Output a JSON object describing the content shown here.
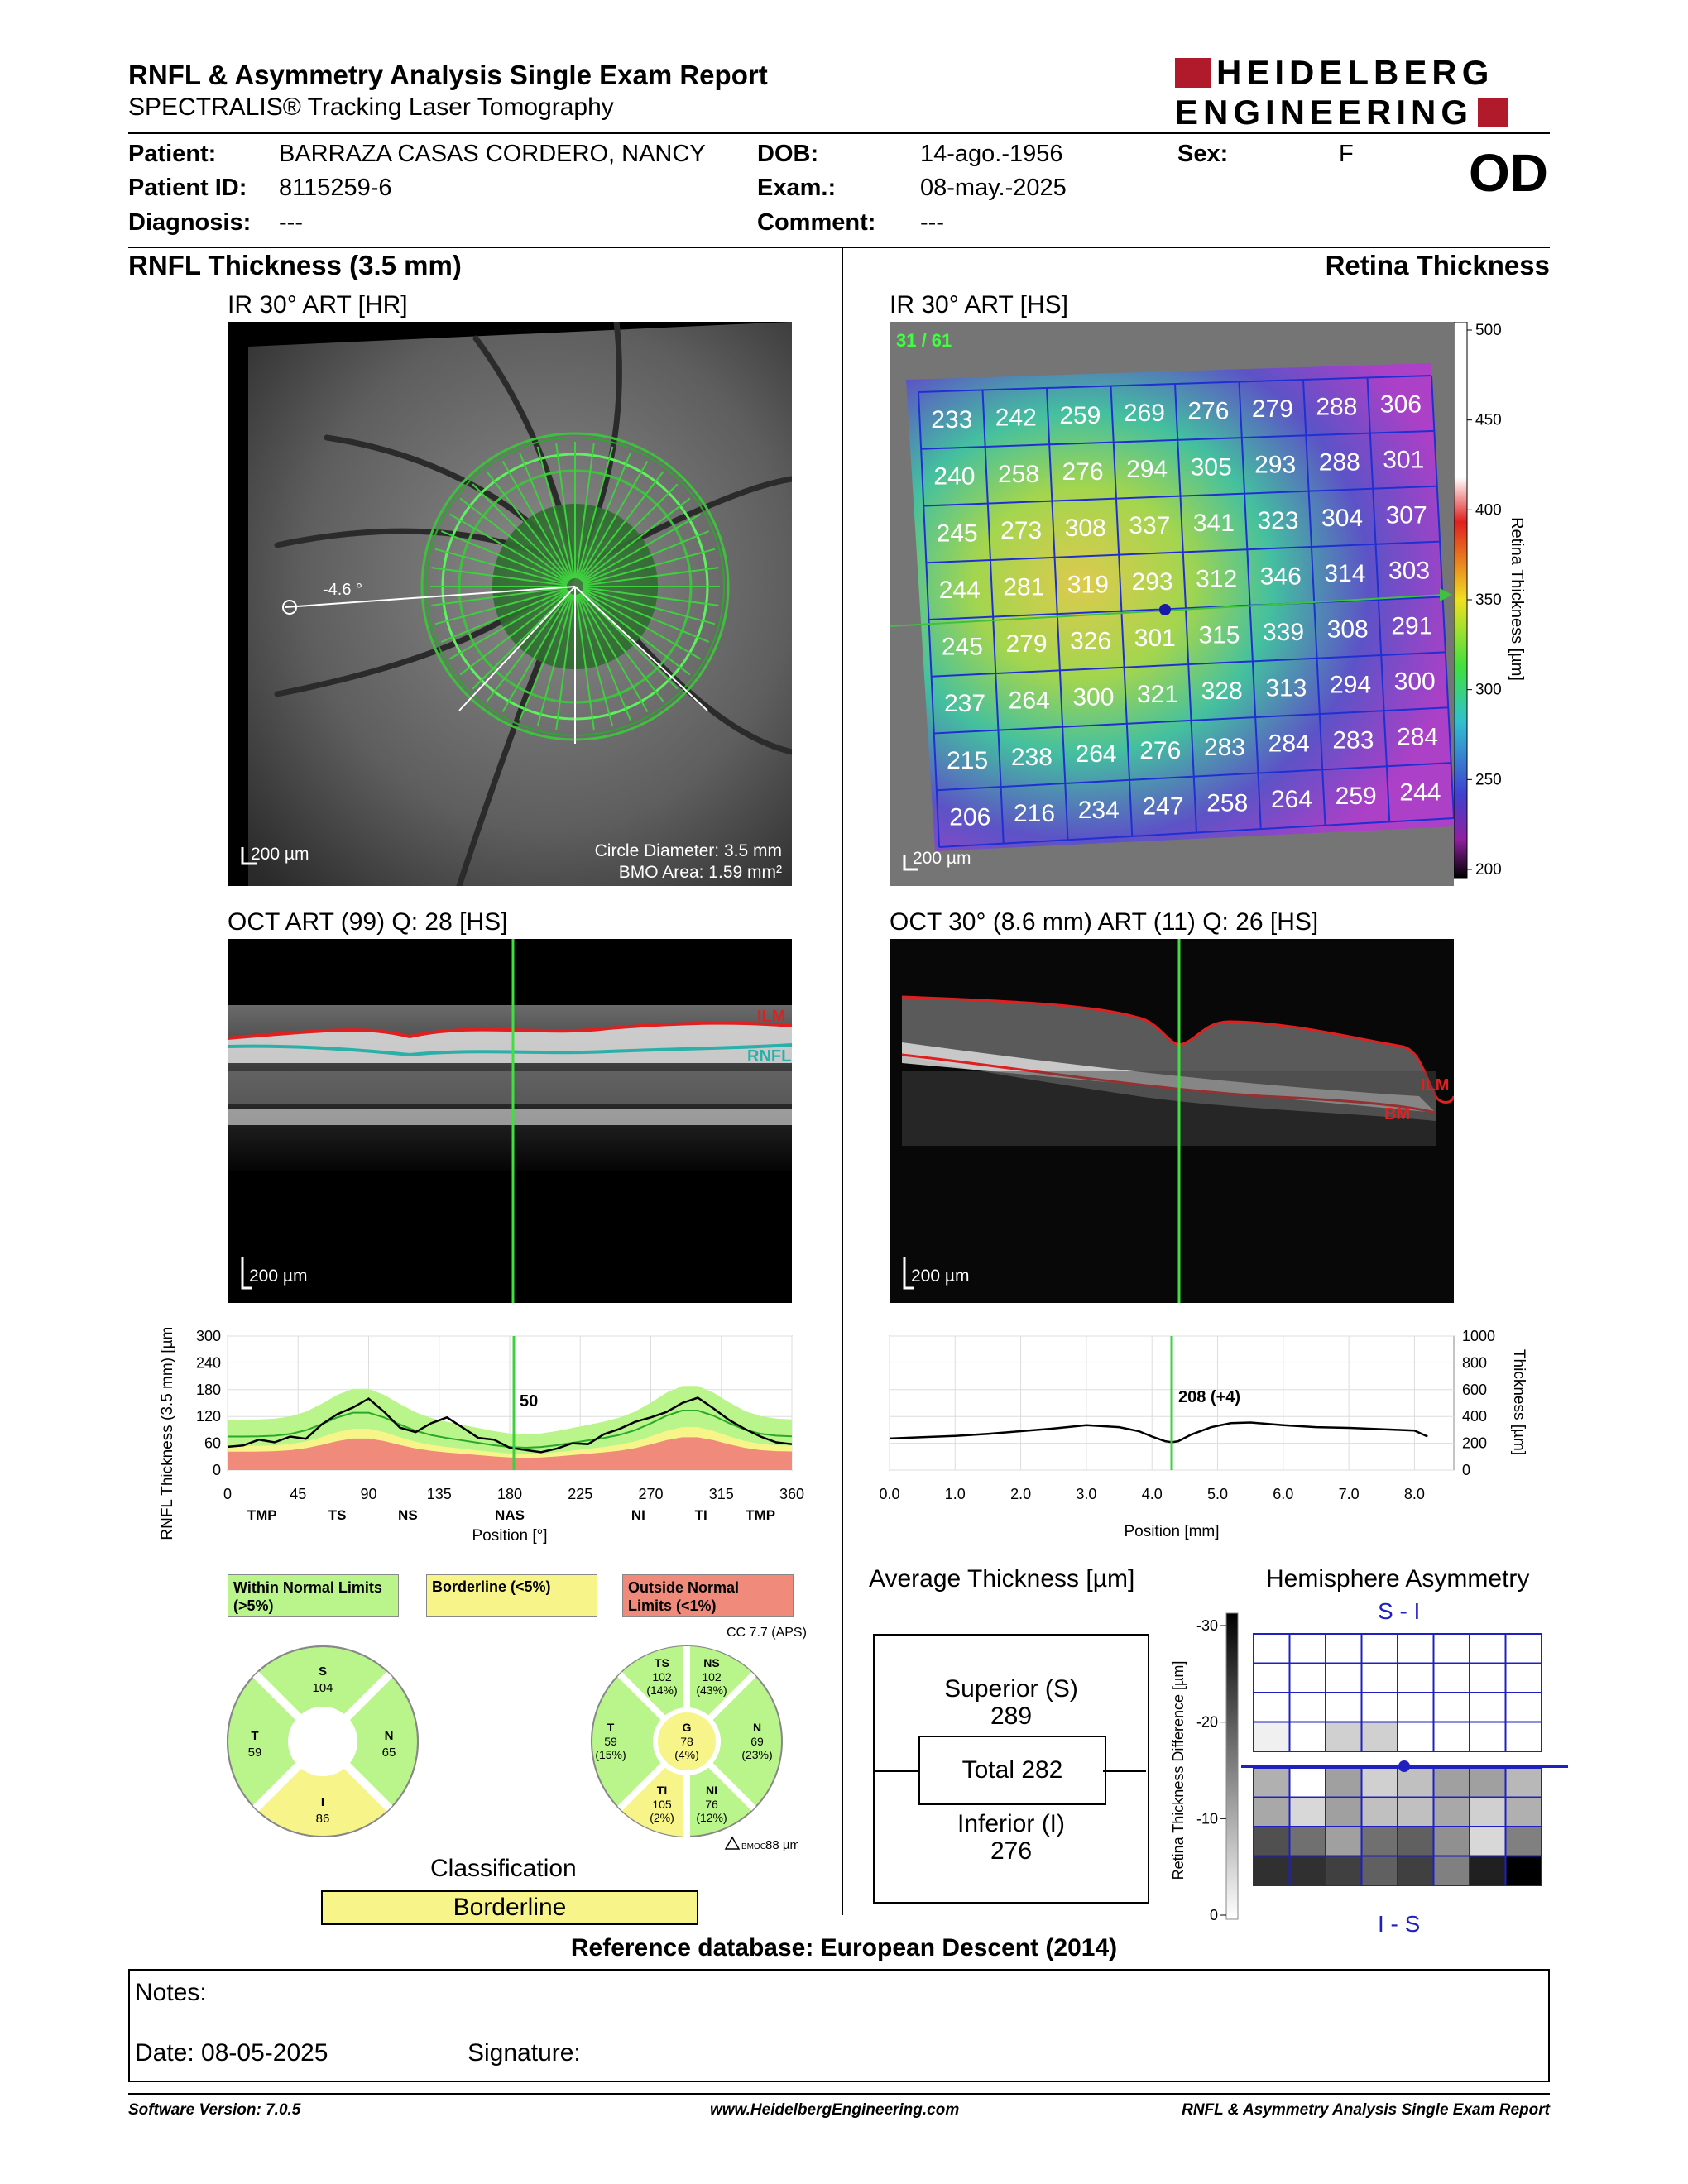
{
  "header": {
    "title": "RNFL & Asymmetry Analysis Single Exam Report",
    "subtitle": "SPECTRALIS® Tracking Laser Tomography",
    "logo_line1": "HEIDELBERG",
    "logo_line2": "ENGINEERING"
  },
  "patient": {
    "patient_label": "Patient:",
    "patient_value": "BARRAZA CASAS CORDERO, NANCY",
    "id_label": "Patient ID:",
    "id_value": "8115259-6",
    "diagnosis_label": "Diagnosis:",
    "diagnosis_value": "---",
    "dob_label": "DOB:",
    "dob_value": "14-ago.-1956",
    "exam_label": "Exam.:",
    "exam_value": "08-may.-2025",
    "comment_label": "Comment:",
    "comment_value": "---",
    "sex_label": "Sex:",
    "sex_value": "F",
    "eye": "OD"
  },
  "left_section": {
    "title": "RNFL Thickness (3.5 mm)",
    "ir_label": "IR 30° ART [HR]",
    "angle_label": "-4.6 °",
    "scale": "200 µm",
    "circle_diameter": "Circle Diameter: 3.5 mm",
    "bmo_area": "BMO Area: 1.59 mm²",
    "oct_label": "OCT ART (99) Q: 28 [HS]",
    "ilm": "ILM",
    "rnfl": "RNFL",
    "oct_scale": "200 µm"
  },
  "right_section": {
    "title": "Retina Thickness",
    "ir_label": "IR 30° ART [HS]",
    "scan_index": "31 / 61",
    "scale": "200 µm",
    "colorbar_label": "Retina Thickness [µm]",
    "colorbar_ticks": [
      "500",
      "450",
      "400",
      "350",
      "300",
      "250",
      "200"
    ],
    "grid": [
      [
        "233",
        "242",
        "259",
        "269",
        "276",
        "279",
        "288",
        "306"
      ],
      [
        "240",
        "258",
        "276",
        "294",
        "305",
        "293",
        "288",
        "301"
      ],
      [
        "245",
        "273",
        "308",
        "337",
        "341",
        "323",
        "304",
        "307"
      ],
      [
        "244",
        "281",
        "319",
        "293",
        "312",
        "346",
        "314",
        "303"
      ],
      [
        "245",
        "279",
        "326",
        "301",
        "315",
        "339",
        "308",
        "291"
      ],
      [
        "237",
        "264",
        "300",
        "321",
        "328",
        "313",
        "294",
        "300"
      ],
      [
        "215",
        "238",
        "264",
        "276",
        "283",
        "284",
        "283",
        "284"
      ],
      [
        "206",
        "216",
        "234",
        "247",
        "258",
        "264",
        "259",
        "244"
      ]
    ],
    "oct_label": "OCT 30° (8.6 mm) ART (11) Q: 26 [HS]",
    "ilm": "ILM",
    "bm": "BM",
    "oct_scale": "200 µm"
  },
  "chart_data": [
    {
      "type": "line",
      "ylabel": "RNFL Thickness (3.5 mm) [µm]",
      "xlabel": "Position [°]",
      "xlim": [
        0,
        360
      ],
      "ylim": [
        0,
        300
      ],
      "xticks": [
        "0",
        "45",
        "90",
        "135",
        "180",
        "225",
        "270",
        "315",
        "360"
      ],
      "yticks": [
        "300",
        "240",
        "180",
        "120",
        "60",
        "0"
      ],
      "sector_labels": [
        "TMP",
        "TS",
        "NS",
        "NAS",
        "NI",
        "TI",
        "TMP"
      ],
      "cursor_x": 180,
      "cursor_value": "50",
      "series": [
        {
          "x": [
            0,
            10,
            20,
            30,
            40,
            50,
            60,
            70,
            80,
            90,
            100,
            110,
            120,
            130,
            140,
            150,
            160,
            170,
            180,
            190,
            200,
            210,
            220,
            230,
            240,
            250,
            260,
            270,
            280,
            290,
            300,
            310,
            320,
            330,
            340,
            350,
            360
          ],
          "values": [
            52,
            55,
            68,
            62,
            75,
            70,
            102,
            125,
            140,
            160,
            130,
            95,
            85,
            105,
            118,
            95,
            72,
            68,
            50,
            45,
            40,
            48,
            60,
            58,
            80,
            92,
            108,
            118,
            130,
            150,
            162,
            138,
            112,
            92,
            75,
            62,
            58
          ]
        }
      ]
    },
    {
      "type": "line",
      "ylabel": "Thickness [µm]",
      "xlabel": "Position [mm]",
      "xlim": [
        0,
        8.6
      ],
      "ylim": [
        0,
        1000
      ],
      "xticks": [
        "0.0",
        "1.0",
        "2.0",
        "3.0",
        "4.0",
        "5.0",
        "6.0",
        "7.0",
        "8.0"
      ],
      "yticks": [
        "1000",
        "800",
        "600",
        "400",
        "200",
        "0"
      ],
      "cursor_x": 4.3,
      "cursor_value": "208 (+4)",
      "series": [
        {
          "x": [
            0,
            0.5,
            1.0,
            1.5,
            2.0,
            2.5,
            3.0,
            3.5,
            3.8,
            4.0,
            4.2,
            4.3,
            4.4,
            4.6,
            4.9,
            5.2,
            5.5,
            6.0,
            6.5,
            7.0,
            7.5,
            8.0,
            8.2
          ],
          "values": [
            235,
            245,
            255,
            270,
            290,
            310,
            335,
            320,
            290,
            250,
            215,
            208,
            215,
            265,
            320,
            350,
            355,
            335,
            320,
            315,
            305,
            295,
            250
          ]
        }
      ]
    }
  ],
  "legend": {
    "within": "Within Normal Limits (>5%)",
    "borderline": "Borderline (<5%)",
    "outside": "Outside Normal Limits (<1%)",
    "colors": {
      "within": "#b9f58a",
      "borderline": "#f7f58a",
      "outside": "#f08b7c"
    }
  },
  "sectors_4": {
    "S": {
      "label": "S",
      "value": "104"
    },
    "T": {
      "label": "T",
      "value": "59"
    },
    "N": {
      "label": "N",
      "value": "65"
    },
    "I": {
      "label": "I",
      "value": "86"
    }
  },
  "sectors_6": {
    "cc": "CC 7.7 (APS)",
    "TS": {
      "label": "TS",
      "value": "102",
      "pct": "(14%)"
    },
    "NS": {
      "label": "NS",
      "value": "102",
      "pct": "(43%)"
    },
    "T": {
      "label": "T",
      "value": "59",
      "pct": "(15%)"
    },
    "G": {
      "label": "G",
      "value": "78",
      "pct": "(4%)"
    },
    "N": {
      "label": "N",
      "value": "69",
      "pct": "(23%)"
    },
    "TI": {
      "label": "TI",
      "value": "105",
      "pct": "(2%)"
    },
    "NI": {
      "label": "NI",
      "value": "76",
      "pct": "(12%)"
    },
    "bmoc": "88 µm",
    "bmoc_sub": "BMOC"
  },
  "classification": {
    "label": "Classification",
    "value": "Borderline"
  },
  "average_thickness": {
    "title": "Average Thickness [µm]",
    "superior_label": "Superior (S)",
    "superior_value": "289",
    "total_label": "Total 282",
    "inferior_label": "Inferior (I)",
    "inferior_value": "276"
  },
  "hemisphere": {
    "title": "Hemisphere Asymmetry",
    "top": "S - I",
    "bottom": "I - S",
    "scale_label": "Retina Thickness Difference [µm]",
    "ticks": [
      "-30",
      "-20",
      "-10",
      "0"
    ]
  },
  "reference": "Reference database: European Descent (2014)",
  "notes": {
    "label": "Notes:",
    "date": "Date: 08-05-2025",
    "signature": "Signature:"
  },
  "footer": {
    "software": "Software Version: 7.0.5",
    "url": "www.HeidelbergEngineering.com",
    "report": "RNFL & Asymmetry Analysis Single Exam Report"
  }
}
